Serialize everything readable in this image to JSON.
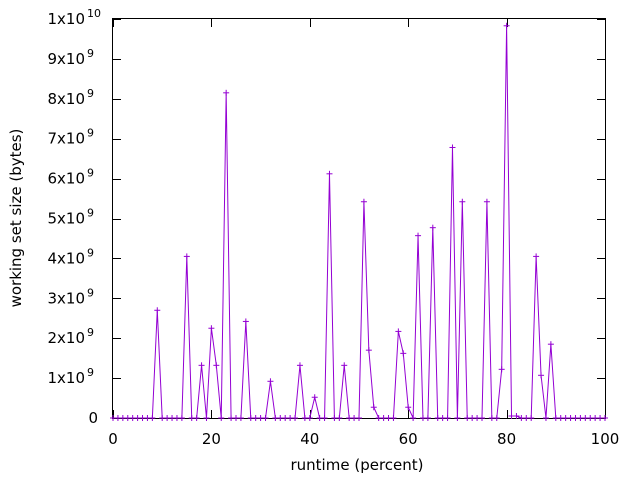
{
  "chart_data": {
    "type": "line",
    "xlabel": "runtime (percent)",
    "ylabel": "working set size (bytes)",
    "xlim": [
      0,
      100
    ],
    "ylim": [
      0,
      10000000000
    ],
    "grid": false,
    "legend": "none",
    "x_ticks": [
      {
        "value": 0,
        "label": "0"
      },
      {
        "value": 20,
        "label": "20"
      },
      {
        "value": 40,
        "label": "40"
      },
      {
        "value": 60,
        "label": "60"
      },
      {
        "value": 80,
        "label": "80"
      },
      {
        "value": 100,
        "label": "100"
      }
    ],
    "y_ticks": [
      {
        "value": 0,
        "mantissa": "0",
        "exponent": ""
      },
      {
        "value": 1000000000,
        "mantissa": "1x10",
        "exponent": "9"
      },
      {
        "value": 2000000000,
        "mantissa": "2x10",
        "exponent": "9"
      },
      {
        "value": 3000000000,
        "mantissa": "3x10",
        "exponent": "9"
      },
      {
        "value": 4000000000,
        "mantissa": "4x10",
        "exponent": "9"
      },
      {
        "value": 5000000000,
        "mantissa": "5x10",
        "exponent": "9"
      },
      {
        "value": 6000000000,
        "mantissa": "6x10",
        "exponent": "9"
      },
      {
        "value": 7000000000,
        "mantissa": "7x10",
        "exponent": "9"
      },
      {
        "value": 8000000000,
        "mantissa": "8x10",
        "exponent": "9"
      },
      {
        "value": 9000000000,
        "mantissa": "9x10",
        "exponent": "9"
      },
      {
        "value": 10000000000,
        "mantissa": "1x10",
        "exponent": "10"
      }
    ],
    "series": [
      {
        "color": "#9400d3",
        "marker": "plus",
        "x": [
          0,
          1,
          2,
          3,
          4,
          5,
          6,
          7,
          8,
          9,
          10,
          11,
          12,
          13,
          14,
          15,
          16,
          17,
          18,
          19,
          20,
          21,
          22,
          23,
          24,
          25,
          26,
          27,
          28,
          29,
          30,
          31,
          32,
          33,
          34,
          35,
          36,
          37,
          38,
          39,
          40,
          41,
          42,
          43,
          44,
          45,
          46,
          47,
          48,
          49,
          50,
          51,
          52,
          53,
          54,
          55,
          56,
          57,
          58,
          59,
          60,
          61,
          62,
          63,
          64,
          65,
          66,
          67,
          68,
          69,
          70,
          71,
          72,
          73,
          74,
          75,
          76,
          77,
          78,
          79,
          80,
          81,
          82,
          83,
          84,
          85,
          86,
          87,
          88,
          89,
          90,
          91,
          92,
          93,
          94,
          95,
          96,
          97,
          98,
          99,
          100
        ],
        "y": [
          0,
          0,
          0,
          0,
          0,
          0,
          0,
          0,
          0,
          2700000000,
          0,
          0,
          0,
          0,
          0,
          4050000000,
          0,
          0,
          1320000000,
          0,
          2250000000,
          1320000000,
          0,
          8150000000,
          0,
          0,
          0,
          2420000000,
          0,
          0,
          0,
          0,
          920000000,
          0,
          0,
          0,
          0,
          0,
          1320000000,
          0,
          0,
          520000000,
          0,
          0,
          6120000000,
          0,
          0,
          1320000000,
          0,
          0,
          0,
          5420000000,
          1700000000,
          270000000,
          0,
          0,
          0,
          0,
          2170000000,
          1620000000,
          270000000,
          0,
          4570000000,
          0,
          0,
          4770000000,
          0,
          0,
          0,
          6780000000,
          0,
          5420000000,
          0,
          0,
          0,
          0,
          5420000000,
          0,
          0,
          1220000000,
          9830000000,
          50000000,
          50000000,
          0,
          0,
          0,
          4050000000,
          1070000000,
          0,
          1850000000,
          0,
          0,
          0,
          0,
          0,
          0,
          0,
          0,
          0,
          0,
          0
        ]
      }
    ]
  }
}
